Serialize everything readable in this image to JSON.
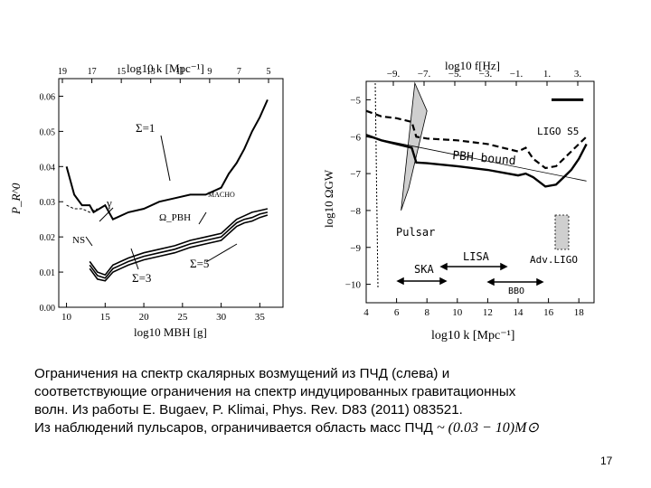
{
  "caption": {
    "line1": "Ограничения на спектр скалярных возмущений из ПЧД (слева) и",
    "line2": "соответствующие ограничения на спектр индуцированных гравитационных",
    "line3_prefix": "волн. Из работы ",
    "line3_ref": "E. Bugaev, P. Klimai, Phys. Rev. D83 (2011) 083521",
    "line3_suffix": ".",
    "line4_prefix": "Из наблюдений пульсаров, ограничивается область масс ПЧД",
    "line4_mass": "~ (0.03 − 10)M⊙"
  },
  "page_number": "17",
  "chart_data": [
    {
      "type": "line",
      "panel": "left",
      "top_axis_label": "log10 k [Mpc⁻¹]",
      "top_ticks": [
        "19",
        "17",
        "15",
        "13",
        "11",
        "9",
        "7",
        "5"
      ],
      "xlabel": "log10 MBH [g]",
      "x_ticks": [
        "10",
        "15",
        "20",
        "25",
        "30",
        "35"
      ],
      "xlim": [
        9,
        38
      ],
      "ylabel": "P_R^0",
      "y_ticks": [
        "0.00",
        "0.01",
        "0.02",
        "0.03",
        "0.04",
        "0.05",
        "0.06"
      ],
      "ylim": [
        0,
        0.065
      ],
      "annotations": [
        "Σ=1",
        "γ",
        "MACHO",
        "Ω_PBH",
        "NS",
        "Σ=3",
        "Σ=5"
      ],
      "series": [
        {
          "x": [
            10,
            11,
            12,
            13,
            13.5,
            15,
            16,
            18,
            20,
            22,
            24,
            26,
            28,
            30,
            31,
            32,
            33,
            34,
            35,
            36
          ],
          "y": [
            0.04,
            0.032,
            0.029,
            0.029,
            0.027,
            0.029,
            0.025,
            0.027,
            0.028,
            0.03,
            0.031,
            0.032,
            0.032,
            0.034,
            0.038,
            0.041,
            0.045,
            0.05,
            0.054,
            0.059
          ]
        },
        {
          "x": [
            13,
            14,
            15,
            16,
            17,
            18,
            20,
            22,
            24,
            26,
            28,
            30,
            31,
            32,
            33,
            34,
            35,
            36
          ],
          "y": [
            0.013,
            0.01,
            0.0092,
            0.012,
            0.013,
            0.014,
            0.0155,
            0.0165,
            0.0175,
            0.019,
            0.02,
            0.021,
            0.023,
            0.025,
            0.026,
            0.027,
            0.0275,
            0.028
          ]
        },
        {
          "x": [
            13,
            14,
            15,
            16,
            17,
            18,
            20,
            22,
            24,
            26,
            28,
            30,
            31,
            32,
            33,
            34,
            35,
            36
          ],
          "y": [
            0.012,
            0.009,
            0.0083,
            0.011,
            0.012,
            0.013,
            0.0145,
            0.0155,
            0.0165,
            0.018,
            0.019,
            0.02,
            0.022,
            0.024,
            0.025,
            0.0255,
            0.0265,
            0.027
          ]
        },
        {
          "x": [
            13,
            14,
            15,
            16,
            17,
            18,
            20,
            22,
            24,
            26,
            28,
            30,
            31,
            32,
            33,
            34,
            35,
            36
          ],
          "y": [
            0.011,
            0.008,
            0.0075,
            0.01,
            0.011,
            0.012,
            0.0135,
            0.0145,
            0.0155,
            0.017,
            0.018,
            0.019,
            0.021,
            0.023,
            0.024,
            0.0245,
            0.0255,
            0.0262
          ]
        }
      ]
    },
    {
      "type": "line",
      "panel": "right",
      "top_axis_label": "log10 f[Hz]",
      "top_ticks": [
        "-9.",
        "-7.",
        "-5.",
        "-3.",
        "-1.",
        "1.",
        "3."
      ],
      "xlabel": "log10 k [Mpc⁻¹]",
      "x_ticks": [
        "4",
        "6",
        "8",
        "10",
        "12",
        "14",
        "16",
        "18"
      ],
      "xlim": [
        4,
        19
      ],
      "ylabel": "log10 ΩGW",
      "y_ticks": [
        "-5",
        "-6",
        "-7",
        "-8",
        "-9",
        "-10"
      ],
      "ylim": [
        -10.5,
        -4.5
      ],
      "annotations": [
        "LIGO S5",
        "PBH bound",
        "Pulsar",
        "LISA",
        "SKA",
        "Adv.LIGO",
        "BBO"
      ],
      "series": [
        {
          "x": [
            4,
            5,
            6,
            7,
            7.3,
            8,
            10,
            12,
            14,
            14.5,
            15,
            15.8,
            16.5,
            17,
            17.5,
            18,
            18.5
          ],
          "y": [
            -5.3,
            -5.45,
            -5.5,
            -5.6,
            -6.0,
            -6.05,
            -6.1,
            -6.2,
            -6.4,
            -6.3,
            -6.6,
            -6.85,
            -6.8,
            -6.6,
            -6.4,
            -6.2,
            -6.0
          ]
        },
        {
          "x": [
            4,
            5,
            6,
            7,
            7.3,
            8,
            10,
            12,
            14,
            14.5,
            15,
            15.8,
            16.5,
            17,
            17.5,
            18,
            18.5
          ],
          "y": [
            -5.95,
            -6.1,
            -6.2,
            -6.3,
            -6.7,
            -6.72,
            -6.8,
            -6.9,
            -7.05,
            -7.0,
            -7.1,
            -7.35,
            -7.3,
            -7.1,
            -6.9,
            -6.6,
            -6.2
          ]
        },
        {
          "x": [
            4,
            18.5
          ],
          "y": [
            -6.0,
            -7.2
          ]
        },
        {
          "x": [
            7.2,
            8.0,
            6.8,
            6.3
          ],
          "y": [
            -4.55,
            -5.3,
            -7.4,
            -8.0
          ]
        },
        {
          "x": [
            16.2,
            18.3
          ],
          "y": [
            -5.0,
            -5.0
          ]
        }
      ]
    }
  ]
}
